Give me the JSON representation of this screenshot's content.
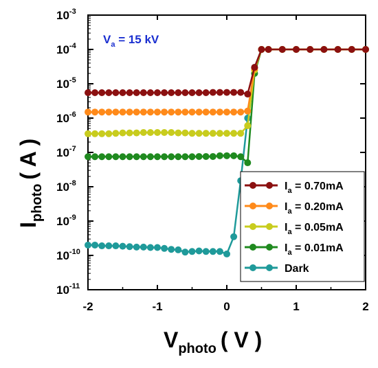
{
  "chart_data": {
    "type": "line",
    "xlabel_main": "V",
    "xlabel_sub": "photo",
    "xlabel_unit": "( V )",
    "ylabel_main": "I",
    "ylabel_sub": "photo",
    "ylabel_unit": "( A )",
    "xlim": [
      -2,
      2
    ],
    "ylim_log10": [
      -11,
      -3
    ],
    "log_y": true,
    "x_ticks": [
      "-2",
      "-1",
      "0",
      "1",
      "2"
    ],
    "x_tick_values": [
      -2,
      -1,
      0,
      1,
      2
    ],
    "y_tick_exponents": [
      "-11",
      "-10",
      "-9",
      "-8",
      "-7",
      "-6",
      "-5",
      "-4",
      "-3"
    ],
    "y_tick_base": "10",
    "grid": false,
    "legend_position": "bottom-right",
    "annotation": {
      "main": "V",
      "sub": "a",
      "rest": " = 15 kV"
    },
    "series": [
      {
        "name_main": "I",
        "name_sub": "a",
        "name_rest": " = 0.70mA",
        "color": "#8b1010",
        "x": [
          -2.0,
          -1.9,
          -1.8,
          -1.7,
          -1.6,
          -1.5,
          -1.4,
          -1.3,
          -1.2,
          -1.1,
          -1.0,
          -0.9,
          -0.8,
          -0.7,
          -0.6,
          -0.5,
          -0.4,
          -0.3,
          -0.2,
          -0.1,
          0.0,
          0.1,
          0.2,
          0.3,
          0.4,
          0.5,
          0.6,
          0.8,
          1.0,
          1.2,
          1.4,
          1.6,
          1.8,
          2.0
        ],
        "y": [
          5.5e-06,
          5.5e-06,
          5.5e-06,
          5.5e-06,
          5.5e-06,
          5.5e-06,
          5.5e-06,
          5.5e-06,
          5.5e-06,
          5.5e-06,
          5.5e-06,
          5.5e-06,
          5.5e-06,
          5.5e-06,
          5.5e-06,
          5.5e-06,
          5.5e-06,
          5.5e-06,
          5.6e-06,
          5.6e-06,
          5.6e-06,
          5.6e-06,
          5.6e-06,
          5e-06,
          3e-05,
          0.0001,
          0.0001,
          0.0001,
          0.0001,
          0.0001,
          0.0001,
          0.0001,
          0.0001,
          0.0001
        ]
      },
      {
        "name_main": "I",
        "name_sub": "a",
        "name_rest": " = 0.20mA",
        "color": "#ff8a1a",
        "x": [
          -2.0,
          -1.9,
          -1.8,
          -1.7,
          -1.6,
          -1.5,
          -1.4,
          -1.3,
          -1.2,
          -1.1,
          -1.0,
          -0.9,
          -0.8,
          -0.7,
          -0.6,
          -0.5,
          -0.4,
          -0.3,
          -0.2,
          -0.1,
          0.0,
          0.1,
          0.2,
          0.3,
          0.4,
          0.5,
          0.6,
          0.8,
          1.0,
          1.2,
          1.4,
          1.6,
          1.8,
          2.0
        ],
        "y": [
          1.5e-06,
          1.5e-06,
          1.5e-06,
          1.5e-06,
          1.5e-06,
          1.5e-06,
          1.5e-06,
          1.5e-06,
          1.5e-06,
          1.5e-06,
          1.5e-06,
          1.5e-06,
          1.5e-06,
          1.5e-06,
          1.5e-06,
          1.5e-06,
          1.5e-06,
          1.5e-06,
          1.5e-06,
          1.5e-06,
          1.5e-06,
          1.5e-06,
          1.5e-06,
          1.6e-06,
          2.8e-05,
          0.0001,
          0.0001,
          0.0001,
          0.0001,
          0.0001,
          0.0001,
          0.0001,
          0.0001,
          0.0001
        ]
      },
      {
        "name_main": "I",
        "name_sub": "a",
        "name_rest": " = 0.05mA",
        "color": "#c8cc1e",
        "x": [
          -2.0,
          -1.9,
          -1.8,
          -1.7,
          -1.6,
          -1.5,
          -1.4,
          -1.3,
          -1.2,
          -1.1,
          -1.0,
          -0.9,
          -0.8,
          -0.7,
          -0.6,
          -0.5,
          -0.4,
          -0.3,
          -0.2,
          -0.1,
          0.0,
          0.1,
          0.2,
          0.3,
          0.4,
          0.5,
          0.6,
          0.8,
          1.0,
          1.2,
          1.4,
          1.6,
          1.8,
          2.0
        ],
        "y": [
          3.5e-07,
          3.5e-07,
          3.5e-07,
          3.5e-07,
          3.6e-07,
          3.7e-07,
          3.7e-07,
          3.7e-07,
          3.8e-07,
          3.8e-07,
          3.8e-07,
          3.8e-07,
          3.8e-07,
          3.7e-07,
          3.7e-07,
          3.6e-07,
          3.6e-07,
          3.6e-07,
          3.6e-07,
          3.6e-07,
          3.6e-07,
          3.6e-07,
          3.6e-07,
          6e-07,
          2.5e-05,
          0.0001,
          0.0001,
          0.0001,
          0.0001,
          0.0001,
          0.0001,
          0.0001,
          0.0001,
          0.0001
        ]
      },
      {
        "name_main": "I",
        "name_sub": "a",
        "name_rest": " = 0.01mA",
        "color": "#1f8a1f",
        "x": [
          -2.0,
          -1.9,
          -1.8,
          -1.7,
          -1.6,
          -1.5,
          -1.4,
          -1.3,
          -1.2,
          -1.1,
          -1.0,
          -0.9,
          -0.8,
          -0.7,
          -0.6,
          -0.5,
          -0.4,
          -0.3,
          -0.2,
          -0.1,
          0.0,
          0.1,
          0.2,
          0.3,
          0.4,
          0.5,
          0.6,
          0.8,
          1.0,
          1.2,
          1.4,
          1.6,
          1.8,
          2.0
        ],
        "y": [
          7.5e-08,
          7.5e-08,
          7.5e-08,
          7.5e-08,
          7.5e-08,
          7.5e-08,
          7.5e-08,
          7.5e-08,
          7.5e-08,
          7.5e-08,
          7.5e-08,
          7.5e-08,
          7.5e-08,
          7.5e-08,
          7.5e-08,
          7.5e-08,
          7.6e-08,
          7.6e-08,
          7.6e-08,
          8e-08,
          8e-08,
          8e-08,
          7.5e-08,
          5e-08,
          2e-05,
          0.0001,
          0.0001,
          0.0001,
          0.0001,
          0.0001,
          0.0001,
          0.0001,
          0.0001,
          0.0001
        ]
      },
      {
        "name_main": "",
        "name_sub": "",
        "name_rest": "Dark",
        "color": "#1f9a9a",
        "x": [
          -2.0,
          -1.9,
          -1.8,
          -1.7,
          -1.6,
          -1.5,
          -1.4,
          -1.3,
          -1.2,
          -1.1,
          -1.0,
          -0.9,
          -0.8,
          -0.7,
          -0.6,
          -0.5,
          -0.4,
          -0.3,
          -0.2,
          -0.1,
          0.0,
          0.1,
          0.2,
          0.3,
          0.4,
          0.5,
          0.6,
          0.8,
          1.0,
          1.2,
          1.4,
          1.6,
          1.8,
          2.0
        ],
        "y": [
          2e-10,
          2e-10,
          1.9e-10,
          1.9e-10,
          1.9e-10,
          1.85e-10,
          1.8e-10,
          1.75e-10,
          1.75e-10,
          1.7e-10,
          1.7e-10,
          1.6e-10,
          1.5e-10,
          1.45e-10,
          1.25e-10,
          1.3e-10,
          1.35e-10,
          1.3e-10,
          1.3e-10,
          1.3e-10,
          1.1e-10,
          3.5e-10,
          1.5e-08,
          1e-06,
          3e-05,
          0.0001,
          0.0001,
          0.0001,
          0.0001,
          0.0001,
          0.0001,
          0.0001,
          0.0001,
          0.0001
        ]
      }
    ]
  }
}
